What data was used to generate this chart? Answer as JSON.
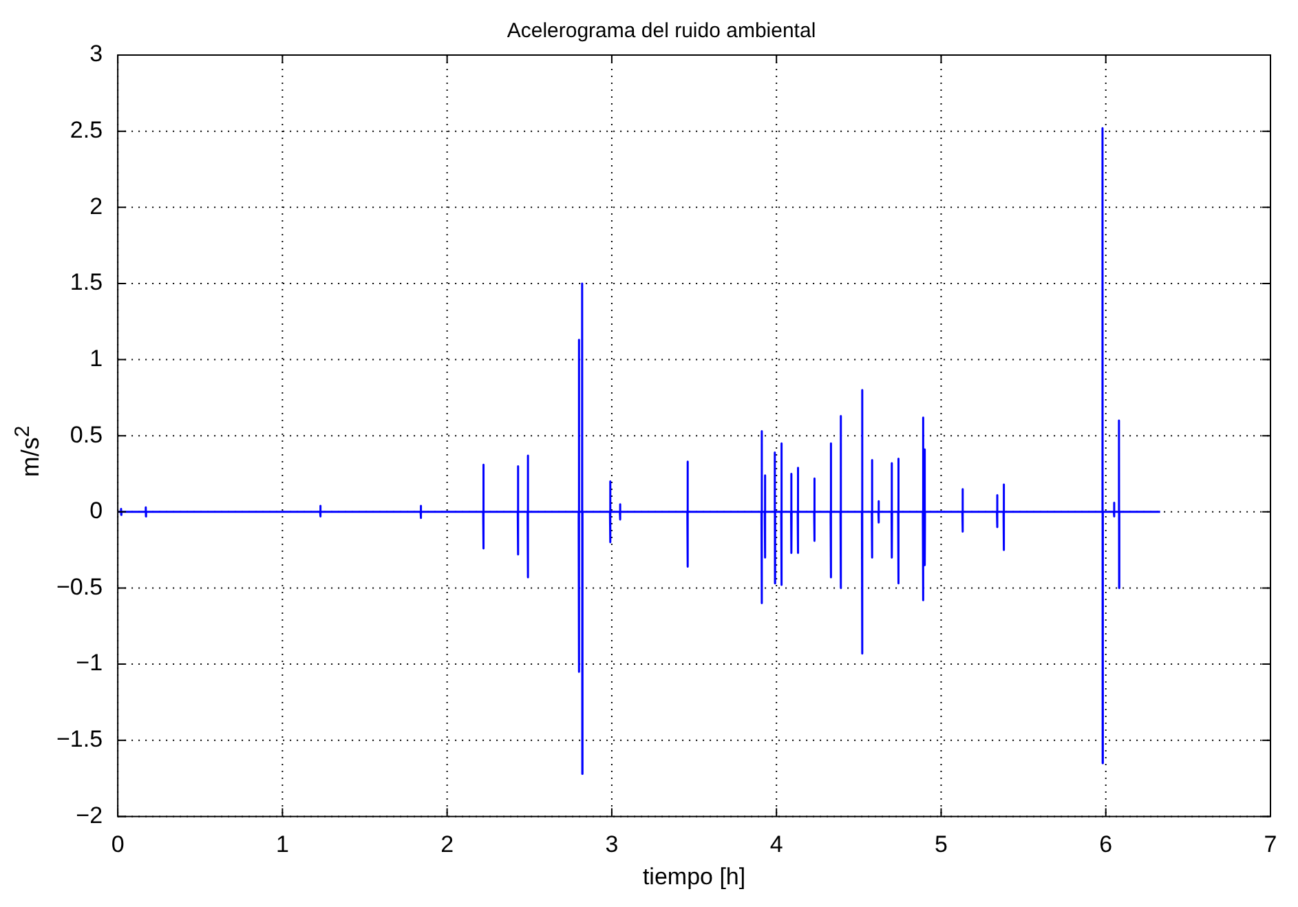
{
  "chart_data": {
    "type": "line",
    "title": "Acelerograma del ruido ambiental",
    "xlabel": "tiempo [h]",
    "ylabel": "m/s$^{2}$",
    "series": [
      {
        "color": "#0000ff",
        "x": [
          0,
          0.019,
          0.02,
          0.021,
          0.022,
          0.169,
          0.17,
          0.171,
          0.172,
          1.229,
          1.23,
          1.231,
          1.232,
          1.839,
          1.84,
          1.841,
          1.842,
          2.219,
          2.22,
          2.221,
          2.222,
          2.429,
          2.43,
          2.431,
          2.432,
          2.489,
          2.49,
          2.491,
          2.492,
          2.799,
          2.8,
          2.801,
          2.802,
          2.819,
          2.82,
          2.821,
          2.822,
          2.989,
          2.99,
          2.991,
          2.992,
          3.049,
          3.05,
          3.051,
          3.052,
          3.459,
          3.46,
          3.461,
          3.462,
          3.909,
          3.91,
          3.911,
          3.912,
          3.929,
          3.93,
          3.931,
          3.932,
          3.989,
          3.99,
          3.991,
          3.992,
          4.029,
          4.03,
          4.031,
          4.032,
          4.089,
          4.09,
          4.091,
          4.092,
          4.129,
          4.13,
          4.131,
          4.132,
          4.229,
          4.23,
          4.231,
          4.232,
          4.329,
          4.33,
          4.331,
          4.332,
          4.389,
          4.39,
          4.391,
          4.392,
          4.519,
          4.52,
          4.521,
          4.522,
          4.579,
          4.58,
          4.581,
          4.582,
          4.619,
          4.62,
          4.621,
          4.622,
          4.699,
          4.7,
          4.701,
          4.702,
          4.739,
          4.74,
          4.741,
          4.742,
          4.889,
          4.89,
          4.891,
          4.892,
          4.899,
          4.9,
          4.901,
          4.902,
          5.129,
          5.13,
          5.131,
          5.132,
          5.339,
          5.34,
          5.341,
          5.342,
          5.379,
          5.38,
          5.381,
          5.382,
          5.979,
          5.98,
          5.981,
          5.982,
          6.049,
          6.05,
          6.051,
          6.052,
          6.079,
          6.08,
          6.081,
          6.082,
          6.33
        ],
        "values": [
          0,
          0,
          0.02,
          -0.02,
          0,
          0,
          0.03,
          -0.03,
          0,
          0,
          0.04,
          -0.03,
          0,
          0,
          0.04,
          -0.04,
          0,
          0,
          0.31,
          -0.24,
          0,
          0,
          0.3,
          -0.28,
          0,
          0,
          0.37,
          -0.43,
          0,
          0,
          1.13,
          -1.05,
          0,
          0,
          1.5,
          -1.72,
          0,
          0,
          0.2,
          -0.2,
          0,
          0,
          0.05,
          -0.05,
          0,
          0,
          0.33,
          -0.36,
          0,
          0,
          0.53,
          -0.6,
          0,
          0,
          0.24,
          -0.3,
          0,
          0,
          0.39,
          -0.47,
          0,
          0,
          0.45,
          -0.48,
          0,
          0,
          0.25,
          -0.27,
          0,
          0,
          0.29,
          -0.27,
          0,
          0,
          0.22,
          -0.19,
          0,
          0,
          0.45,
          -0.43,
          0,
          0,
          0.63,
          -0.5,
          0,
          0,
          0.8,
          -0.93,
          0,
          0,
          0.34,
          -0.3,
          0,
          0,
          0.07,
          -0.07,
          0,
          0,
          0.32,
          -0.3,
          0,
          0,
          0.35,
          -0.47,
          0,
          0,
          0.62,
          -0.58,
          0,
          0,
          0.41,
          -0.35,
          0,
          0,
          0.15,
          -0.13,
          0,
          0,
          0.11,
          -0.1,
          0,
          0,
          0.18,
          -0.25,
          0,
          0,
          2.52,
          -1.65,
          0,
          0,
          0.06,
          -0.03,
          0,
          0,
          0.6,
          -0.5,
          0,
          0
        ]
      }
    ],
    "xlim": [
      0,
      7
    ],
    "xticks": [
      0,
      1,
      2,
      3,
      4,
      5,
      6,
      7
    ],
    "ylim": [
      -2,
      3
    ],
    "yticks": [
      -2,
      -1.5,
      -1,
      -0.5,
      0,
      0.5,
      1,
      1.5,
      2,
      2.5,
      3
    ],
    "grid": true,
    "legend": false,
    "marker": "none",
    "line_style": "solid"
  }
}
